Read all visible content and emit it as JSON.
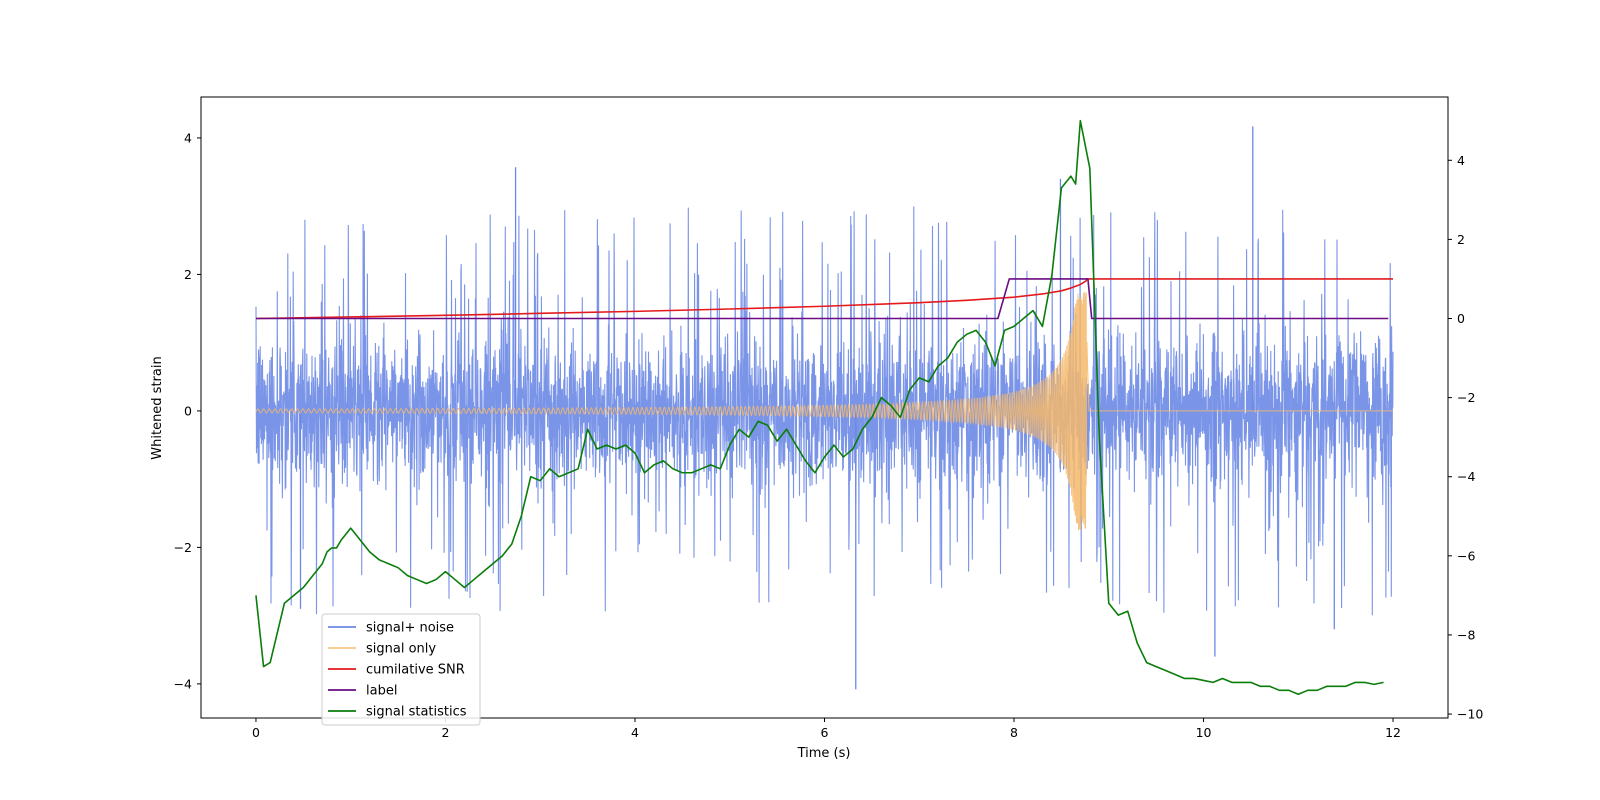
{
  "chart_data": {
    "type": "line",
    "title": "",
    "xlabel": "Time (s)",
    "ylabel": "Whitened strain",
    "y2label": "",
    "xlim": [
      -0.58,
      12.58
    ],
    "ylim": [
      -4.5,
      4.6
    ],
    "y2lim": [
      -10.1,
      5.6
    ],
    "x_ticks": [
      0,
      2,
      4,
      6,
      8,
      10,
      12
    ],
    "y_ticks": [
      -4,
      -2,
      0,
      2,
      4
    ],
    "y2_ticks": [
      -10,
      -8,
      -6,
      -4,
      -2,
      0,
      2,
      4
    ],
    "legend_loc": "lower-left",
    "colors": {
      "signal_noise": "#6b88e6",
      "signal_only": "#f5b96b",
      "snr": "#e41a1c",
      "label": "#6a0d83",
      "stat": "#0a7d0a"
    },
    "series": [
      {
        "name": "signal+ noise",
        "axis": "left",
        "description_kind": "noise_band",
        "duration": 12.0,
        "typical_range": [
          -1.5,
          1.5
        ],
        "max": 4.17,
        "min": -4.08
      },
      {
        "name": "signal only",
        "axis": "left",
        "description_kind": "chirp",
        "x_end": 8.77,
        "peak_amplitude": 1.75
      },
      {
        "name": "cumilative SNR",
        "axis": "right",
        "x": [
          0,
          1,
          2,
          3,
          4,
          5,
          6,
          7,
          7.5,
          8.0,
          8.3,
          8.5,
          8.6,
          8.7,
          8.76,
          8.77,
          12
        ],
        "y": [
          0,
          0.04,
          0.08,
          0.13,
          0.18,
          0.24,
          0.31,
          0.4,
          0.46,
          0.54,
          0.62,
          0.7,
          0.77,
          0.86,
          0.95,
          1.0,
          1.0
        ]
      },
      {
        "name": "label",
        "axis": "right",
        "x": [
          0,
          7.83,
          7.95,
          8.78,
          8.82,
          11.95
        ],
        "y": [
          0,
          0,
          1,
          1,
          0,
          0
        ]
      },
      {
        "name": "signal statistics",
        "axis": "right",
        "x": [
          0,
          0.08,
          0.15,
          0.3,
          0.4,
          0.5,
          0.6,
          0.7,
          0.75,
          0.8,
          0.85,
          0.9,
          1.0,
          1.1,
          1.2,
          1.3,
          1.4,
          1.5,
          1.6,
          1.7,
          1.8,
          1.9,
          2.0,
          2.1,
          2.2,
          2.3,
          2.4,
          2.5,
          2.6,
          2.7,
          2.8,
          2.9,
          3.0,
          3.1,
          3.2,
          3.3,
          3.4,
          3.5,
          3.6,
          3.7,
          3.8,
          3.9,
          4.0,
          4.1,
          4.2,
          4.3,
          4.4,
          4.5,
          4.6,
          4.7,
          4.8,
          4.9,
          5.0,
          5.1,
          5.2,
          5.3,
          5.4,
          5.5,
          5.6,
          5.7,
          5.8,
          5.9,
          6.0,
          6.1,
          6.2,
          6.3,
          6.4,
          6.5,
          6.6,
          6.7,
          6.8,
          6.9,
          7.0,
          7.1,
          7.2,
          7.3,
          7.4,
          7.5,
          7.6,
          7.7,
          7.8,
          7.9,
          8.0,
          8.1,
          8.2,
          8.3,
          8.4,
          8.5,
          8.6,
          8.65,
          8.7,
          8.8,
          8.9,
          9.0,
          9.1,
          9.2,
          9.3,
          9.4,
          9.5,
          9.6,
          9.7,
          9.8,
          9.9,
          10.0,
          10.1,
          10.2,
          10.3,
          10.4,
          10.5,
          10.6,
          10.7,
          10.8,
          10.9,
          11.0,
          11.1,
          11.2,
          11.3,
          11.4,
          11.5,
          11.6,
          11.7,
          11.8,
          11.9
        ],
        "y": [
          -7.0,
          -8.8,
          -8.7,
          -7.2,
          -7.0,
          -6.8,
          -6.5,
          -6.2,
          -5.9,
          -5.8,
          -5.8,
          -5.6,
          -5.3,
          -5.6,
          -5.9,
          -6.1,
          -6.2,
          -6.3,
          -6.5,
          -6.6,
          -6.7,
          -6.6,
          -6.4,
          -6.6,
          -6.8,
          -6.6,
          -6.4,
          -6.2,
          -6.0,
          -5.7,
          -5.0,
          -4.0,
          -4.1,
          -3.8,
          -4.0,
          -3.9,
          -3.8,
          -2.8,
          -3.3,
          -3.2,
          -3.3,
          -3.2,
          -3.4,
          -3.9,
          -3.7,
          -3.6,
          -3.8,
          -3.9,
          -3.9,
          -3.8,
          -3.7,
          -3.8,
          -3.2,
          -2.8,
          -3.0,
          -2.6,
          -2.7,
          -3.1,
          -2.8,
          -3.2,
          -3.6,
          -3.9,
          -3.5,
          -3.2,
          -3.5,
          -3.3,
          -2.8,
          -2.5,
          -2.0,
          -2.2,
          -2.5,
          -1.8,
          -1.5,
          -1.6,
          -1.2,
          -1.0,
          -0.6,
          -0.4,
          -0.3,
          -0.6,
          -1.2,
          -0.3,
          -0.2,
          0.0,
          0.2,
          -0.2,
          1.1,
          3.3,
          3.6,
          3.4,
          5.0,
          3.8,
          -3.0,
          -7.2,
          -7.5,
          -7.4,
          -8.2,
          -8.7,
          -8.8,
          -8.9,
          -9.0,
          -9.1,
          -9.1,
          -9.15,
          -9.2,
          -9.1,
          -9.2,
          -9.2,
          -9.2,
          -9.3,
          -9.3,
          -9.4,
          -9.4,
          -9.5,
          -9.4,
          -9.4,
          -9.3,
          -9.3,
          -9.3,
          -9.2,
          -9.2,
          -9.25,
          -9.2
        ]
      }
    ]
  }
}
